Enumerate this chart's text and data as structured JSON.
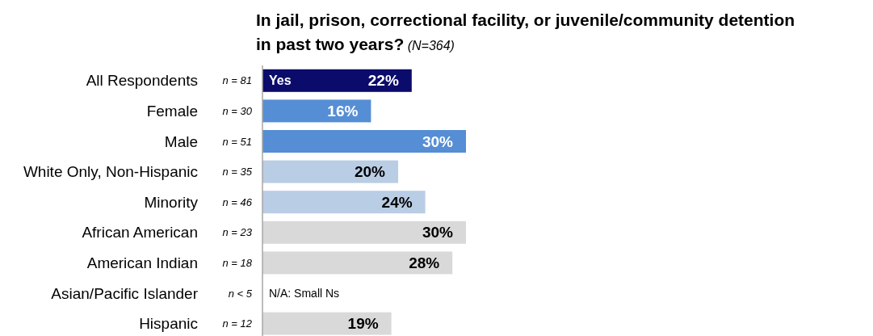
{
  "chart_data": {
    "type": "bar",
    "orientation": "horizontal",
    "title": "In jail, prison, correctional facility, or juvenile/community detention in past two years?",
    "subtitle": "(N=364)",
    "categories": [
      "All Respondents",
      "Female",
      "Male",
      "White Only, Non-Hispanic",
      "Minority",
      "African American",
      "American Indian",
      "Asian/Pacific Islander",
      "Hispanic"
    ],
    "series": [
      {
        "name": "Yes",
        "values": [
          22,
          16,
          30,
          20,
          24,
          30,
          28,
          null,
          19
        ],
        "value_labels": [
          "22%",
          "16%",
          "30%",
          "20%",
          "24%",
          "30%",
          "28%",
          null,
          "19%"
        ]
      }
    ],
    "colors": [
      "#0b0b6b",
      "#558ed5",
      "#558ed5",
      "#b9cde5",
      "#b9cde5",
      "#d9d9d9",
      "#d9d9d9",
      null,
      "#d9d9d9"
    ],
    "y2_categories": [
      "n = 81",
      "n = 30",
      "n = 51",
      "n = 35",
      "n = 46",
      "n = 23",
      "n = 18",
      "n < 5",
      "n = 12"
    ],
    "annotations": [
      "N/A: Small Ns"
    ],
    "legend": false
  }
}
